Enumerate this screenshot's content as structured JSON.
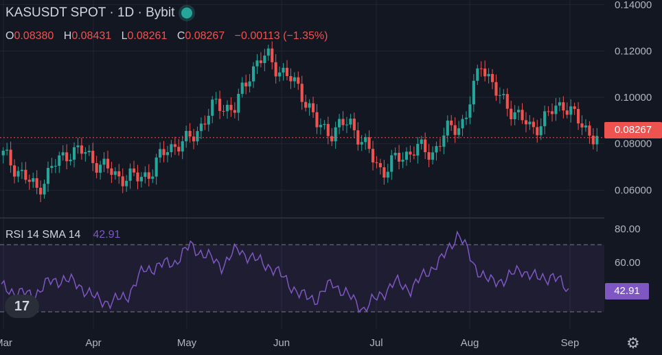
{
  "header": {
    "symbol_title": "KASUSDT SPOT · 1D · Bybit",
    "ohlc": {
      "o_label": "O",
      "o": "0.08380",
      "h_label": "H",
      "h": "0.08431",
      "l_label": "L",
      "l": "0.08261",
      "c_label": "C",
      "c": "0.08267",
      "change": "−0.00113 (−1.35%)"
    }
  },
  "price_axis": {
    "ticks": [
      "0.14000",
      "0.12000",
      "0.10000",
      "0.08000",
      "0.06000"
    ],
    "last_price_tag": "0.08267"
  },
  "rsi_panel": {
    "label": "RSI 14 SMA 14",
    "value": "42.91",
    "axis_ticks": [
      "80.00",
      "60.00"
    ],
    "value_tag": "42.91"
  },
  "x_axis": {
    "ticks": [
      "Mar",
      "Apr",
      "May",
      "Jun",
      "Jul",
      "Aug",
      "Sep"
    ]
  },
  "colors": {
    "background": "#131722",
    "up": "#26a69a",
    "down": "#ef5350",
    "rsi": "#7e57c2",
    "grid": "#2a2e39"
  },
  "icons": {
    "logo": "tradingview-logo-icon",
    "settings": "gear-icon"
  },
  "chart_data": [
    {
      "type": "candlestick",
      "title": "KASUSDT SPOT · 1D · Bybit",
      "ylim": [
        0.048,
        0.142
      ],
      "x_ticks": [
        "Mar",
        "Apr",
        "May",
        "Jun",
        "Jul",
        "Aug",
        "Sep"
      ],
      "y_ticks": [
        0.14,
        0.12,
        0.1,
        0.08,
        0.06
      ],
      "last_price": 0.08267,
      "x": [
        "Mar 1",
        "Mar 5",
        "Mar 10",
        "Mar 15",
        "Mar 20",
        "Mar 25",
        "Mar 31",
        "Apr 5",
        "Apr 10",
        "Apr 15",
        "Apr 20",
        "Apr 25",
        "Apr 30",
        "May 5",
        "May 10",
        "May 15",
        "May 20",
        "May 25",
        "May 31",
        "Jun 5",
        "Jun 10",
        "Jun 15",
        "Jun 20",
        "Jun 25",
        "Jun 30",
        "Jul 5",
        "Jul 10",
        "Jul 15",
        "Jul 20",
        "Jul 25",
        "Jul 31",
        "Aug 5",
        "Aug 10",
        "Aug 15",
        "Aug 20",
        "Aug 25",
        "Aug 31"
      ],
      "close": [
        0.075,
        0.068,
        0.06,
        0.07,
        0.077,
        0.076,
        0.07,
        0.066,
        0.065,
        0.068,
        0.079,
        0.08,
        0.088,
        0.098,
        0.094,
        0.112,
        0.118,
        0.11,
        0.104,
        0.088,
        0.085,
        0.09,
        0.078,
        0.068,
        0.074,
        0.078,
        0.076,
        0.086,
        0.09,
        0.116,
        0.1,
        0.094,
        0.086,
        0.092,
        0.098,
        0.088,
        0.0827
      ],
      "grid": true
    },
    {
      "type": "line",
      "title": "RSI 14 SMA 14",
      "ylim": [
        20,
        85
      ],
      "y_ticks": [
        80,
        60
      ],
      "bands": [
        70,
        30
      ],
      "x": [
        "Mar 1",
        "Mar 5",
        "Mar 10",
        "Mar 15",
        "Mar 20",
        "Mar 25",
        "Mar 31",
        "Apr 5",
        "Apr 10",
        "Apr 15",
        "Apr 20",
        "Apr 25",
        "Apr 30",
        "May 5",
        "May 10",
        "May 15",
        "May 20",
        "May 25",
        "May 31",
        "Jun 5",
        "Jun 10",
        "Jun 15",
        "Jun 20",
        "Jun 25",
        "Jun 30",
        "Jul 5",
        "Jul 10",
        "Jul 15",
        "Jul 20",
        "Jul 25",
        "Jul 31",
        "Aug 5",
        "Aug 10",
        "Aug 15",
        "Aug 20",
        "Aug 25",
        "Aug 31"
      ],
      "series": [
        {
          "values": [
            45,
            42,
            40,
            48,
            50,
            46,
            38,
            36,
            40,
            55,
            58,
            60,
            70,
            64,
            58,
            68,
            62,
            58,
            50,
            40,
            38,
            48,
            40,
            32,
            40,
            48,
            44,
            54,
            62,
            78,
            58,
            48,
            50,
            56,
            50,
            52,
            42.91
          ]
        }
      ],
      "last_value": 42.91
    }
  ]
}
